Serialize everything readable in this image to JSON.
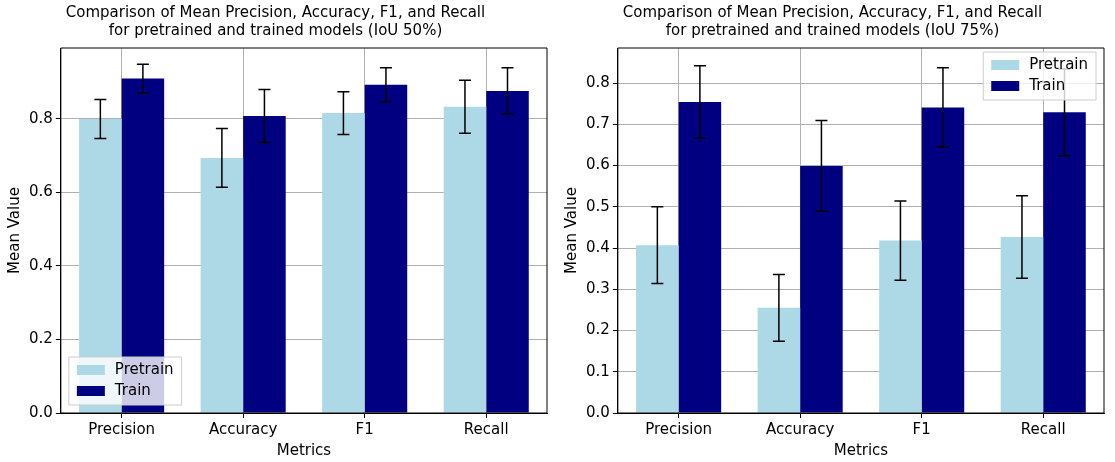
{
  "chart_data": [
    {
      "type": "bar",
      "title": "Comparison of Mean Precision, Accuracy, F1, and Recall\nfor pretrained and trained models (IoU 50%)",
      "xlabel": "Metrics",
      "ylabel": "Mean Value",
      "categories": [
        "Precision",
        "Accuracy",
        "F1",
        "Recall"
      ],
      "series": [
        {
          "name": "Pretrain",
          "color": "#add8e6",
          "values": [
            0.8,
            0.694,
            0.816,
            0.833
          ],
          "errors": [
            0.053,
            0.08,
            0.058,
            0.072
          ]
        },
        {
          "name": "Train",
          "color": "#000080",
          "values": [
            0.91,
            0.808,
            0.893,
            0.876
          ],
          "errors": [
            0.039,
            0.072,
            0.046,
            0.063
          ]
        }
      ],
      "ylim": [
        0,
        0.993
      ],
      "yticks": [
        {
          "value": 0,
          "label": "0.0"
        },
        {
          "value": 0.2,
          "label": "0.2"
        },
        {
          "value": 0.4,
          "label": "0.4"
        },
        {
          "value": 0.6,
          "label": "0.6"
        },
        {
          "value": 0.8,
          "label": "0.8"
        }
      ],
      "grid": true,
      "legend": "bottom left"
    },
    {
      "type": "bar",
      "title": "Comparison of Mean Precision, Accuracy, F1, and Recall\nfor pretrained and trained models (IoU 75%)",
      "xlabel": "Metrics",
      "ylabel": "Mean Value",
      "categories": [
        "Precision",
        "Accuracy",
        "F1",
        "Recall"
      ],
      "series": [
        {
          "name": "Pretrain",
          "color": "#add8e6",
          "values": [
            0.407,
            0.255,
            0.418,
            0.427
          ],
          "errors": [
            0.093,
            0.081,
            0.096,
            0.1
          ]
        },
        {
          "name": "Train",
          "color": "#000080",
          "values": [
            0.754,
            0.599,
            0.741,
            0.729
          ],
          "errors": [
            0.088,
            0.11,
            0.096,
            0.105
          ]
        }
      ],
      "ylim": [
        0,
        0.885
      ],
      "yticks": [
        {
          "value": 0,
          "label": "0.0"
        },
        {
          "value": 0.1,
          "label": "0.1"
        },
        {
          "value": 0.2,
          "label": "0.2"
        },
        {
          "value": 0.3,
          "label": "0.3"
        },
        {
          "value": 0.4,
          "label": "0.4"
        },
        {
          "value": 0.5,
          "label": "0.5"
        },
        {
          "value": 0.6,
          "label": "0.6"
        },
        {
          "value": 0.7,
          "label": "0.7"
        },
        {
          "value": 0.8,
          "label": "0.8"
        }
      ],
      "grid": true,
      "legend": "top right"
    }
  ]
}
